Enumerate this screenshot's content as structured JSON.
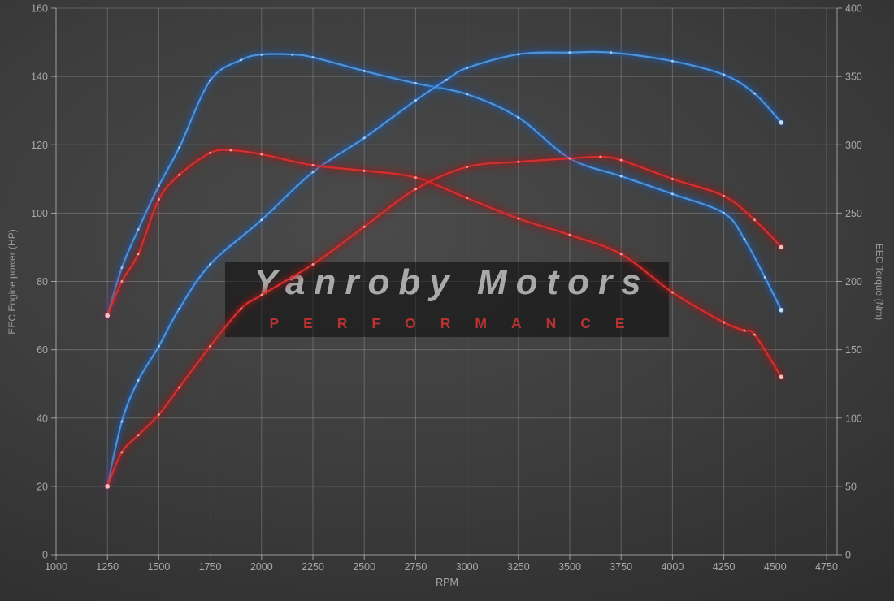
{
  "watermark": {
    "title": "Yanroby Motors",
    "subtitle": "PERFORMANCE",
    "title_color": "#b5b5b5",
    "subtitle_color": "#c23434"
  },
  "chart_data": {
    "type": "line",
    "title": "",
    "xlabel": "RPM",
    "ylabel_left": "EEC Engine power (HP)",
    "ylabel_right": "EEC Torque (Nm)",
    "x_range": [
      1000,
      4750
    ],
    "y_left_range": [
      0,
      160
    ],
    "y_right_range": [
      0,
      400
    ],
    "x_ticks": [
      1000,
      1250,
      1500,
      1750,
      2000,
      2250,
      2500,
      2750,
      3000,
      3250,
      3500,
      3750,
      4000,
      4250,
      4500,
      4750
    ],
    "y_left_ticks": [
      0,
      20,
      40,
      60,
      80,
      100,
      120,
      140,
      160
    ],
    "y_right_ticks": [
      0,
      50,
      100,
      150,
      200,
      250,
      300,
      350,
      400
    ],
    "grid": true,
    "legend_position": "none",
    "series": [
      {
        "id": "torque-run-blue",
        "axis": "right",
        "unit": "Nm",
        "color": "#4b94dd",
        "glow_color": "#1e5cb3",
        "marker_color": "#cfe4f9",
        "peak": {
          "value": 366,
          "rpm": 2050
        },
        "points": [
          [
            1250,
            175
          ],
          [
            1320,
            210
          ],
          [
            1400,
            238
          ],
          [
            1500,
            270
          ],
          [
            1600,
            298
          ],
          [
            1750,
            347
          ],
          [
            1900,
            362
          ],
          [
            2000,
            366
          ],
          [
            2150,
            366
          ],
          [
            2250,
            364
          ],
          [
            2500,
            354
          ],
          [
            2750,
            345
          ],
          [
            3000,
            337
          ],
          [
            3250,
            320
          ],
          [
            3500,
            290
          ],
          [
            3750,
            277
          ],
          [
            4000,
            264
          ],
          [
            4250,
            250
          ],
          [
            4350,
            231
          ],
          [
            4450,
            203
          ],
          [
            4530,
            179
          ]
        ]
      },
      {
        "id": "power-run-blue",
        "axis": "left",
        "unit": "HP",
        "color": "#4b94dd",
        "glow_color": "#1e5cb3",
        "marker_color": "#cfe4f9",
        "peak": {
          "value": 147,
          "rpm": 3500
        },
        "points": [
          [
            1250,
            20
          ],
          [
            1320,
            39
          ],
          [
            1400,
            51
          ],
          [
            1500,
            61
          ],
          [
            1600,
            72
          ],
          [
            1750,
            85
          ],
          [
            2000,
            98
          ],
          [
            2250,
            112
          ],
          [
            2500,
            122
          ],
          [
            2750,
            133
          ],
          [
            2900,
            139
          ],
          [
            3000,
            142.5
          ],
          [
            3250,
            146.5
          ],
          [
            3500,
            147
          ],
          [
            3700,
            147
          ],
          [
            4000,
            144.5
          ],
          [
            4250,
            140.5
          ],
          [
            4400,
            135
          ],
          [
            4530,
            126.5
          ]
        ]
      },
      {
        "id": "torque-run-red",
        "axis": "right",
        "unit": "Nm",
        "color": "#d42f2f",
        "glow_color": "#a81616",
        "marker_color": "#ffc2c2",
        "peak": {
          "value": 296,
          "rpm": 1850
        },
        "points": [
          [
            1250,
            175
          ],
          [
            1320,
            200
          ],
          [
            1400,
            220
          ],
          [
            1500,
            260
          ],
          [
            1600,
            278
          ],
          [
            1750,
            294
          ],
          [
            1850,
            296
          ],
          [
            2000,
            293
          ],
          [
            2250,
            285
          ],
          [
            2500,
            281
          ],
          [
            2750,
            276
          ],
          [
            3000,
            261
          ],
          [
            3250,
            246
          ],
          [
            3500,
            234
          ],
          [
            3750,
            220
          ],
          [
            4000,
            192
          ],
          [
            4250,
            170
          ],
          [
            4350,
            164
          ],
          [
            4400,
            161
          ],
          [
            4530,
            130
          ]
        ]
      },
      {
        "id": "power-run-red",
        "axis": "left",
        "unit": "HP",
        "color": "#d42f2f",
        "glow_color": "#a81616",
        "marker_color": "#ffc2c2",
        "peak": {
          "value": 116.5,
          "rpm": 3650
        },
        "points": [
          [
            1250,
            20
          ],
          [
            1320,
            30
          ],
          [
            1400,
            35
          ],
          [
            1500,
            41
          ],
          [
            1600,
            49
          ],
          [
            1750,
            61
          ],
          [
            1900,
            72
          ],
          [
            2000,
            76
          ],
          [
            2250,
            85
          ],
          [
            2500,
            96
          ],
          [
            2750,
            107
          ],
          [
            3000,
            113.5
          ],
          [
            3250,
            115
          ],
          [
            3500,
            116
          ],
          [
            3650,
            116.5
          ],
          [
            3750,
            115.5
          ],
          [
            4000,
            110
          ],
          [
            4250,
            105
          ],
          [
            4400,
            98
          ],
          [
            4530,
            90
          ]
        ]
      }
    ]
  }
}
